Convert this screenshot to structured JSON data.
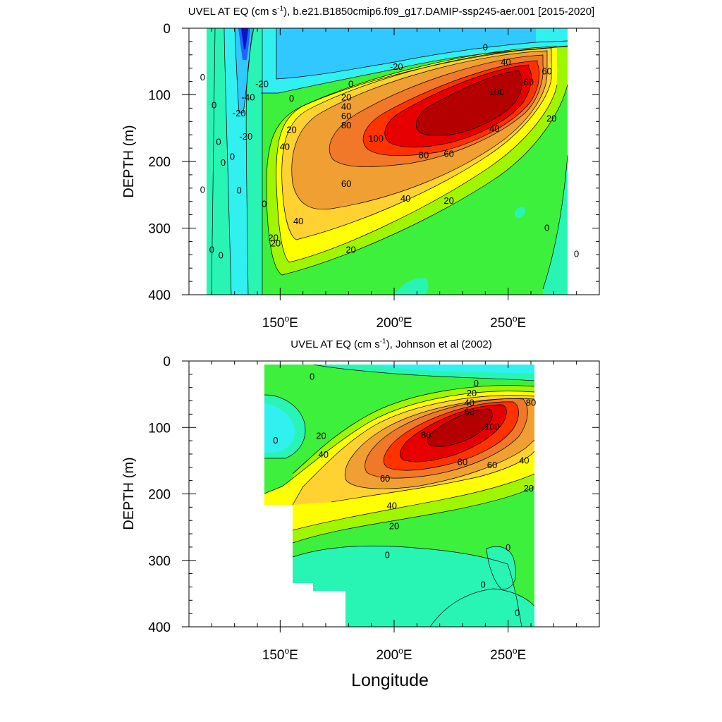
{
  "figure": {
    "xlabel": "Longitude",
    "xticks": [
      {
        "lon": 150,
        "label": "150",
        "suffix": "E"
      },
      {
        "lon": 200,
        "label": "200",
        "suffix": "E"
      },
      {
        "lon": 250,
        "label": "250",
        "suffix": "E"
      }
    ],
    "yticks": [
      0,
      100,
      200,
      300,
      400
    ]
  },
  "chart_data": [
    {
      "type": "contour",
      "title": {
        "part1": "UVEL AT EQ (cm s",
        "exp": "-1",
        "part2": "), b.e21.B1850cmip6.f09_g17.DAMIP-ssp245-aer.001 [2015-2020]"
      },
      "ylabel": "DEPTH (m)",
      "xlim": [
        110,
        290
      ],
      "ylim": [
        400,
        0
      ],
      "y_inverted": true,
      "data_lon_range": [
        118,
        280
      ],
      "core": {
        "lon": 228,
        "depth": 140,
        "max_value": 110
      },
      "contour_interval": 10,
      "colors": [
        "#0a14c8",
        "#1e64ff",
        "#30c8ff",
        "#30f0f0",
        "#28f5b4",
        "#3cf03c",
        "#a0f500",
        "#ffff00",
        "#ffd232",
        "#f0a032",
        "#f07828",
        "#ff3200",
        "#e60000",
        "#b40000"
      ],
      "contour_labels": [
        {
          "text": "0",
          "lon": 240,
          "depth": 28
        },
        {
          "text": "-20",
          "lon": 201,
          "depth": 57
        },
        {
          "text": "40",
          "lon": 249,
          "depth": 50
        },
        {
          "text": "60",
          "lon": 267,
          "depth": 64
        },
        {
          "text": "80",
          "lon": 259,
          "depth": 80
        },
        {
          "text": "100",
          "lon": 245,
          "depth": 95
        },
        {
          "text": "0",
          "lon": 181,
          "depth": 83
        },
        {
          "text": "20",
          "lon": 179,
          "depth": 103
        },
        {
          "text": "40",
          "lon": 179,
          "depth": 117
        },
        {
          "text": "60",
          "lon": 179,
          "depth": 131
        },
        {
          "text": "80",
          "lon": 179,
          "depth": 145
        },
        {
          "text": "100",
          "lon": 192,
          "depth": 165
        },
        {
          "text": "20",
          "lon": 155,
          "depth": 152
        },
        {
          "text": "40",
          "lon": 152,
          "depth": 177
        },
        {
          "text": "80",
          "lon": 213,
          "depth": 190
        },
        {
          "text": "60",
          "lon": 224,
          "depth": 188
        },
        {
          "text": "40",
          "lon": 244,
          "depth": 150
        },
        {
          "text": "20",
          "lon": 269,
          "depth": 135
        },
        {
          "text": "60",
          "lon": 179,
          "depth": 233
        },
        {
          "text": "40",
          "lon": 205,
          "depth": 255
        },
        {
          "text": "20",
          "lon": 224,
          "depth": 258
        },
        {
          "text": "40",
          "lon": 158,
          "depth": 289
        },
        {
          "text": "20",
          "lon": 181,
          "depth": 332
        },
        {
          "text": "0",
          "lon": 116,
          "depth": 73
        },
        {
          "text": "0",
          "lon": 121,
          "depth": 115
        },
        {
          "text": "-40",
          "lon": 136,
          "depth": 103
        },
        {
          "text": "-20",
          "lon": 142,
          "depth": 83
        },
        {
          "text": "-20",
          "lon": 132,
          "depth": 127
        },
        {
          "text": "-20",
          "lon": 135,
          "depth": 162
        },
        {
          "text": "0",
          "lon": 123,
          "depth": 170
        },
        {
          "text": "0",
          "lon": 125,
          "depth": 201
        },
        {
          "text": "0",
          "lon": 116,
          "depth": 242
        },
        {
          "text": "0",
          "lon": 132,
          "depth": 243
        },
        {
          "text": "0",
          "lon": 129,
          "depth": 192
        },
        {
          "text": "0",
          "lon": 143,
          "depth": 263
        },
        {
          "text": "0",
          "lon": 120,
          "depth": 332
        },
        {
          "text": "0",
          "lon": 124,
          "depth": 340
        },
        {
          "text": "20",
          "lon": 147,
          "depth": 314
        },
        {
          "text": "20",
          "lon": 148,
          "depth": 322
        },
        {
          "text": "0",
          "lon": 155,
          "depth": 105
        },
        {
          "text": "0",
          "lon": 267,
          "depth": 299
        },
        {
          "text": "0",
          "lon": 280,
          "depth": 338
        }
      ]
    },
    {
      "type": "contour",
      "title": {
        "part1": "UVEL AT EQ (cm s",
        "exp": "-1",
        "part2": "), Johnson et al (2002)"
      },
      "ylabel": "DEPTH (m)",
      "xlim": [
        110,
        290
      ],
      "ylim": [
        400,
        0
      ],
      "y_inverted": true,
      "data_lon_range": [
        143,
        265
      ],
      "core": {
        "lon": 228,
        "depth": 110,
        "max_value": 105
      },
      "contour_interval": 10,
      "colors": [
        "#30f0f0",
        "#28f5b4",
        "#3cf03c",
        "#a0f500",
        "#ffff00",
        "#ffd232",
        "#f0a032",
        "#f07828",
        "#ff3200",
        "#e60000",
        "#b40000"
      ],
      "contour_labels": [
        {
          "text": "0",
          "lon": 164,
          "depth": 23
        },
        {
          "text": "0",
          "lon": 236,
          "depth": 33
        },
        {
          "text": "20",
          "lon": 234,
          "depth": 48
        },
        {
          "text": "40",
          "lon": 233,
          "depth": 62
        },
        {
          "text": "60",
          "lon": 233,
          "depth": 76
        },
        {
          "text": "80",
          "lon": 260,
          "depth": 62
        },
        {
          "text": "100",
          "lon": 243,
          "depth": 98
        },
        {
          "text": "80",
          "lon": 214,
          "depth": 111
        },
        {
          "text": "80",
          "lon": 230,
          "depth": 151
        },
        {
          "text": "60",
          "lon": 243,
          "depth": 156
        },
        {
          "text": "40",
          "lon": 257,
          "depth": 149
        },
        {
          "text": "20",
          "lon": 259,
          "depth": 191
        },
        {
          "text": "60",
          "lon": 196,
          "depth": 176
        },
        {
          "text": "40",
          "lon": 169,
          "depth": 140
        },
        {
          "text": "20",
          "lon": 168,
          "depth": 112
        },
        {
          "text": "0",
          "lon": 148,
          "depth": 119
        },
        {
          "text": "40",
          "lon": 199,
          "depth": 217
        },
        {
          "text": "20",
          "lon": 200,
          "depth": 248
        },
        {
          "text": "0",
          "lon": 197,
          "depth": 291
        },
        {
          "text": "0",
          "lon": 250,
          "depth": 280
        },
        {
          "text": "0",
          "lon": 239,
          "depth": 336
        },
        {
          "text": "0",
          "lon": 254,
          "depth": 378
        }
      ]
    }
  ]
}
